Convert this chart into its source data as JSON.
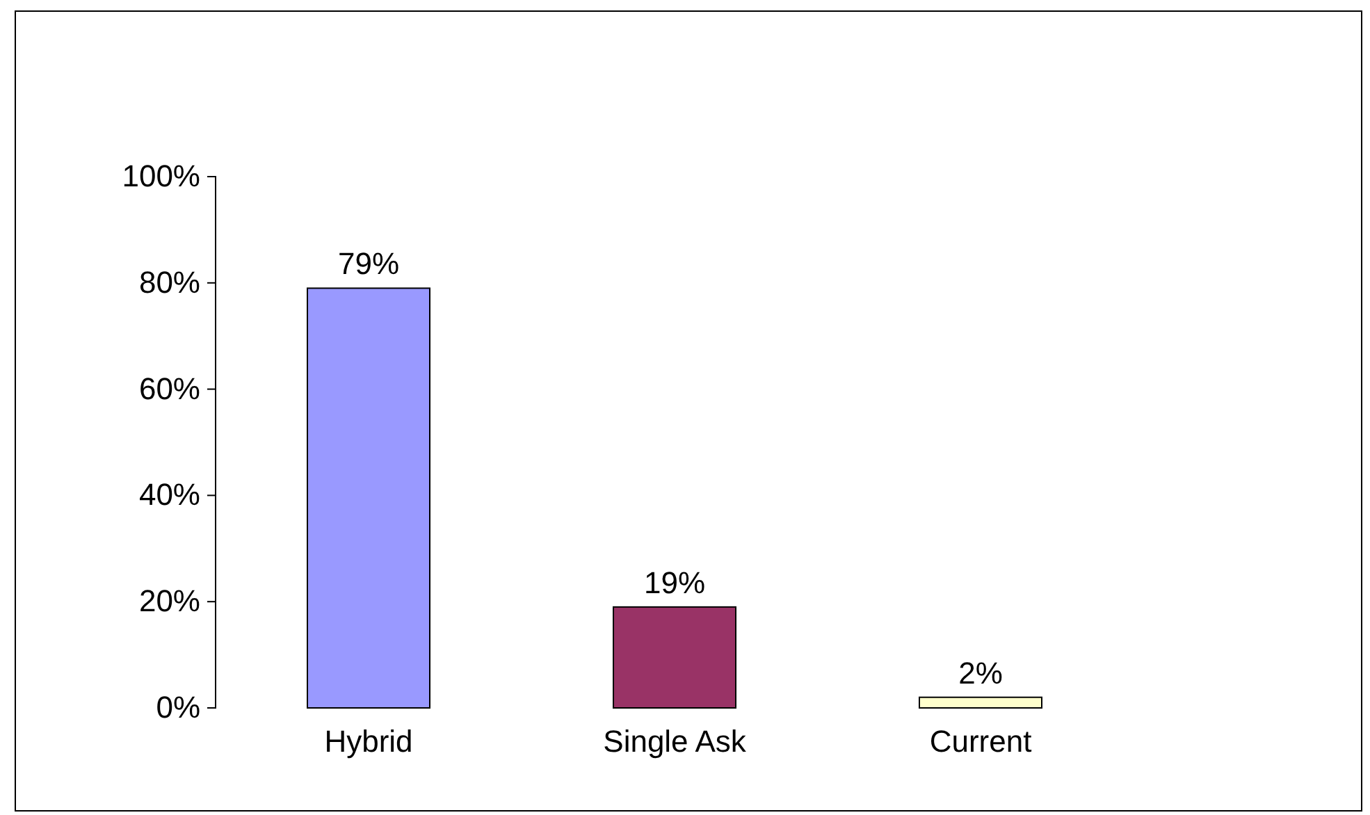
{
  "chart_data": {
    "type": "bar",
    "categories": [
      "Hybrid",
      "Single Ask",
      "Current"
    ],
    "values": [
      79,
      19,
      2
    ],
    "colors": [
      "#9999ff",
      "#993366",
      "#ffffcc"
    ],
    "value_labels": [
      "79%",
      "19%",
      "2%"
    ],
    "ylim": [
      0,
      100
    ],
    "yticks": [
      {
        "value": 0,
        "label": "0%"
      },
      {
        "value": 20,
        "label": "20%"
      },
      {
        "value": 40,
        "label": "40%"
      },
      {
        "value": 60,
        "label": "60%"
      },
      {
        "value": 80,
        "label": "80%"
      },
      {
        "value": 100,
        "label": "100%"
      }
    ],
    "grid": false
  }
}
